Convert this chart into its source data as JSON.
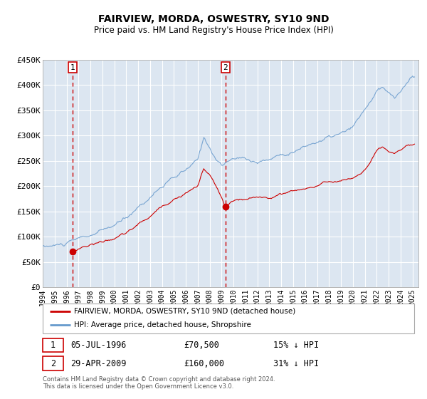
{
  "title": "FAIRVIEW, MORDA, OSWESTRY, SY10 9ND",
  "subtitle": "Price paid vs. HM Land Registry's House Price Index (HPI)",
  "ylim": [
    0,
    450000
  ],
  "xlim_start": 1994.0,
  "xlim_end": 2025.5,
  "yticks": [
    0,
    50000,
    100000,
    150000,
    200000,
    250000,
    300000,
    350000,
    400000,
    450000
  ],
  "ytick_labels": [
    "£0",
    "£50K",
    "£100K",
    "£150K",
    "£200K",
    "£250K",
    "£300K",
    "£350K",
    "£400K",
    "£450K"
  ],
  "xticks": [
    1994,
    1995,
    1996,
    1997,
    1998,
    1999,
    2000,
    2001,
    2002,
    2003,
    2004,
    2005,
    2006,
    2007,
    2008,
    2009,
    2010,
    2011,
    2012,
    2013,
    2014,
    2015,
    2016,
    2017,
    2018,
    2019,
    2020,
    2021,
    2022,
    2023,
    2024,
    2025
  ],
  "marker1_x": 1996.5,
  "marker1_label": "1",
  "marker1_info": "05-JUL-1996",
  "marker1_price_str": "£70,500",
  "marker1_pct": "15% ↓ HPI",
  "marker1_price": 70500,
  "marker2_x": 2009.33,
  "marker2_label": "2",
  "marker2_info": "29-APR-2009",
  "marker2_price_str": "£160,000",
  "marker2_pct": "31% ↓ HPI",
  "marker2_price": 160000,
  "bg_color": "#dce6f1",
  "grid_color": "#ffffff",
  "red_line_color": "#cc0000",
  "blue_line_color": "#6699cc",
  "legend_label_red": "FAIRVIEW, MORDA, OSWESTRY, SY10 9ND (detached house)",
  "legend_label_blue": "HPI: Average price, detached house, Shropshire",
  "footnote": "Contains HM Land Registry data © Crown copyright and database right 2024.\nThis data is licensed under the Open Government Licence v3.0."
}
